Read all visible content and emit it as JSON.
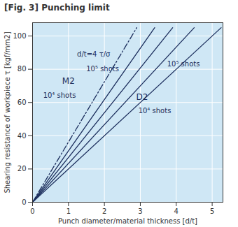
{
  "chart_data": {
    "type": "line",
    "title": "[Fig. 3] Punching limit",
    "x_label": "Punch diameter/material thickness [d/t]",
    "y_label": "Shearing resistance of workpiece τ [kgf/mm2]",
    "xlim": [
      0,
      5.3
    ],
    "ylim": [
      0,
      108
    ],
    "xticks": [
      0,
      1,
      2,
      3,
      4,
      5
    ],
    "yticks": [
      0,
      20,
      40,
      60,
      80,
      100
    ],
    "grid": true,
    "series": [
      {
        "x": [
          0,
          2.9
        ],
        "values": [
          0,
          105
        ],
        "line_style": "dashdot",
        "color": "#1b2d5c"
      },
      {
        "x": [
          0,
          3.4
        ],
        "values": [
          0,
          105
        ],
        "line_style": "solid",
        "color": "#1b2d5c"
      },
      {
        "x": [
          0,
          3.9
        ],
        "values": [
          0,
          105
        ],
        "line_style": "solid",
        "color": "#1b2d5c"
      },
      {
        "x": [
          0,
          4.5
        ],
        "values": [
          0,
          105
        ],
        "line_style": "solid",
        "color": "#1b2d5c"
      },
      {
        "x": [
          0,
          5.25
        ],
        "values": [
          0,
          105
        ],
        "line_style": "solid",
        "color": "#1b2d5c"
      }
    ],
    "annotations": [
      {
        "text": "d/t=4 τ/σ",
        "x": 1.7,
        "y": 89
      },
      {
        "text": "10⁵ shots",
        "x": 1.95,
        "y": 80
      },
      {
        "text": "M2",
        "x": 1.0,
        "y": 73
      },
      {
        "text": "10⁴ shots",
        "x": 0.75,
        "y": 64
      },
      {
        "text": "D2",
        "x": 3.05,
        "y": 63
      },
      {
        "text": "10⁴ shots",
        "x": 3.4,
        "y": 55
      },
      {
        "text": "10⁵ shots",
        "x": 4.2,
        "y": 83
      }
    ]
  }
}
